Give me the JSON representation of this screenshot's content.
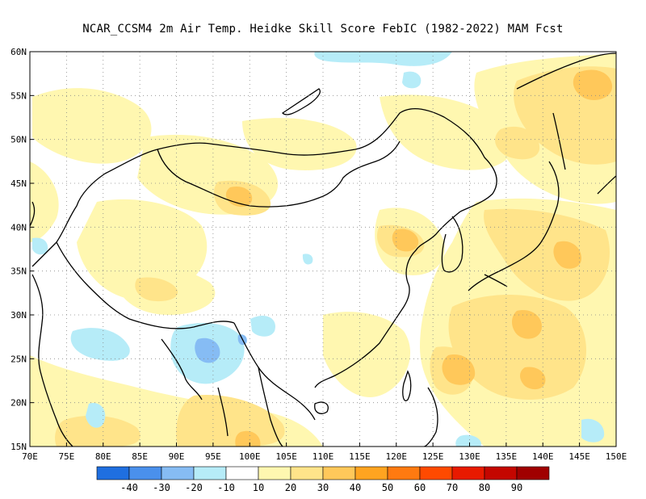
{
  "title": "NCAR_CCSM4  2m Air Temp. Heidke Skill Score FebIC (1982-2022) MAM Fcst",
  "map": {
    "lon_range": [
      70,
      150
    ],
    "lat_range": [
      15,
      60
    ],
    "lon_ticks": [
      {
        "value": 70,
        "label": "70E"
      },
      {
        "value": 75,
        "label": "75E"
      },
      {
        "value": 80,
        "label": "80E"
      },
      {
        "value": 85,
        "label": "85E"
      },
      {
        "value": 90,
        "label": "90E"
      },
      {
        "value": 95,
        "label": "95E"
      },
      {
        "value": 100,
        "label": "100E"
      },
      {
        "value": 105,
        "label": "105E"
      },
      {
        "value": 110,
        "label": "110E"
      },
      {
        "value": 115,
        "label": "115E"
      },
      {
        "value": 120,
        "label": "120E"
      },
      {
        "value": 125,
        "label": "125E"
      },
      {
        "value": 130,
        "label": "130E"
      },
      {
        "value": 135,
        "label": "135E"
      },
      {
        "value": 140,
        "label": "140E"
      },
      {
        "value": 145,
        "label": "145E"
      },
      {
        "value": 150,
        "label": "150E"
      }
    ],
    "lat_ticks": [
      {
        "value": 15,
        "label": "15N"
      },
      {
        "value": 20,
        "label": "20N"
      },
      {
        "value": 25,
        "label": "25N"
      },
      {
        "value": 30,
        "label": "30N"
      },
      {
        "value": 35,
        "label": "35N"
      },
      {
        "value": 40,
        "label": "40N"
      },
      {
        "value": 45,
        "label": "45N"
      },
      {
        "value": 50,
        "label": "50N"
      },
      {
        "value": 55,
        "label": "55N"
      },
      {
        "value": 60,
        "label": "60N"
      }
    ],
    "grid": "dotted"
  },
  "colorbar": {
    "boxes": [
      {
        "color": "#1f6fe0"
      },
      {
        "color": "#4a90ec"
      },
      {
        "color": "#86bcf4"
      },
      {
        "color": "#b6ecf8"
      },
      {
        "color": "#ffffff"
      },
      {
        "color": "#fff7b0"
      },
      {
        "color": "#ffe48a"
      },
      {
        "color": "#ffc85a"
      },
      {
        "color": "#ffa420"
      },
      {
        "color": "#ff7a10"
      },
      {
        "color": "#ff4a00"
      },
      {
        "color": "#e81a00"
      },
      {
        "color": "#c40600"
      },
      {
        "color": "#a00000"
      }
    ],
    "labels": [
      "-40",
      "-30",
      "-20",
      "-10",
      "10",
      "20",
      "30",
      "40",
      "50",
      "60",
      "70",
      "80",
      "90"
    ]
  }
}
